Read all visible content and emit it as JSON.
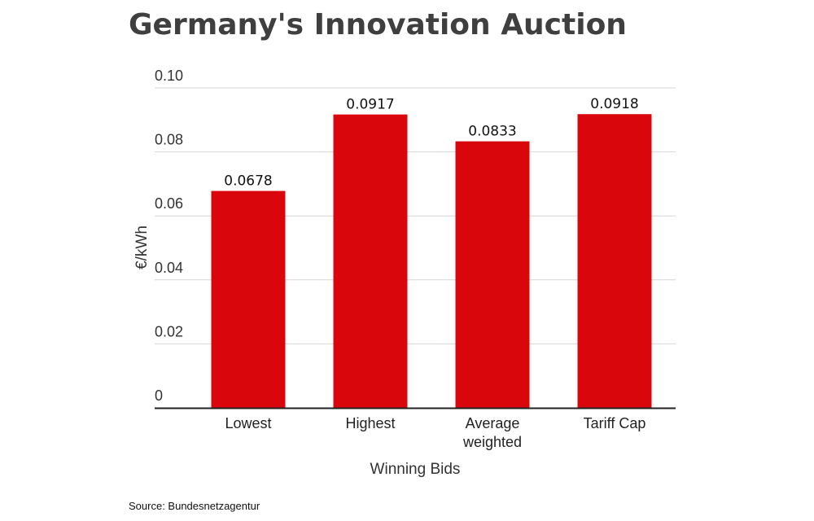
{
  "chart_data": {
    "type": "bar",
    "title": "Germany's Innovation Auction",
    "categories": [
      [
        "Lowest"
      ],
      [
        "Highest"
      ],
      [
        "Average",
        "weighted"
      ],
      [
        "Tariff Cap"
      ]
    ],
    "values": [
      0.0678,
      0.0917,
      0.0833,
      0.0918
    ],
    "data_labels": [
      "0.0678",
      "0.0917",
      "0.0833",
      "0.0918"
    ],
    "xlabel": "Winning Bids",
    "ylabel": "€/kWh",
    "ylim": [
      0,
      0.1
    ],
    "yticks": [
      "0",
      "0.02",
      "0.04",
      "0.06",
      "0.08",
      "0.10"
    ],
    "grid": true,
    "bar_color": "#d9070b",
    "source": "Source: Bundesnetzagentur"
  }
}
